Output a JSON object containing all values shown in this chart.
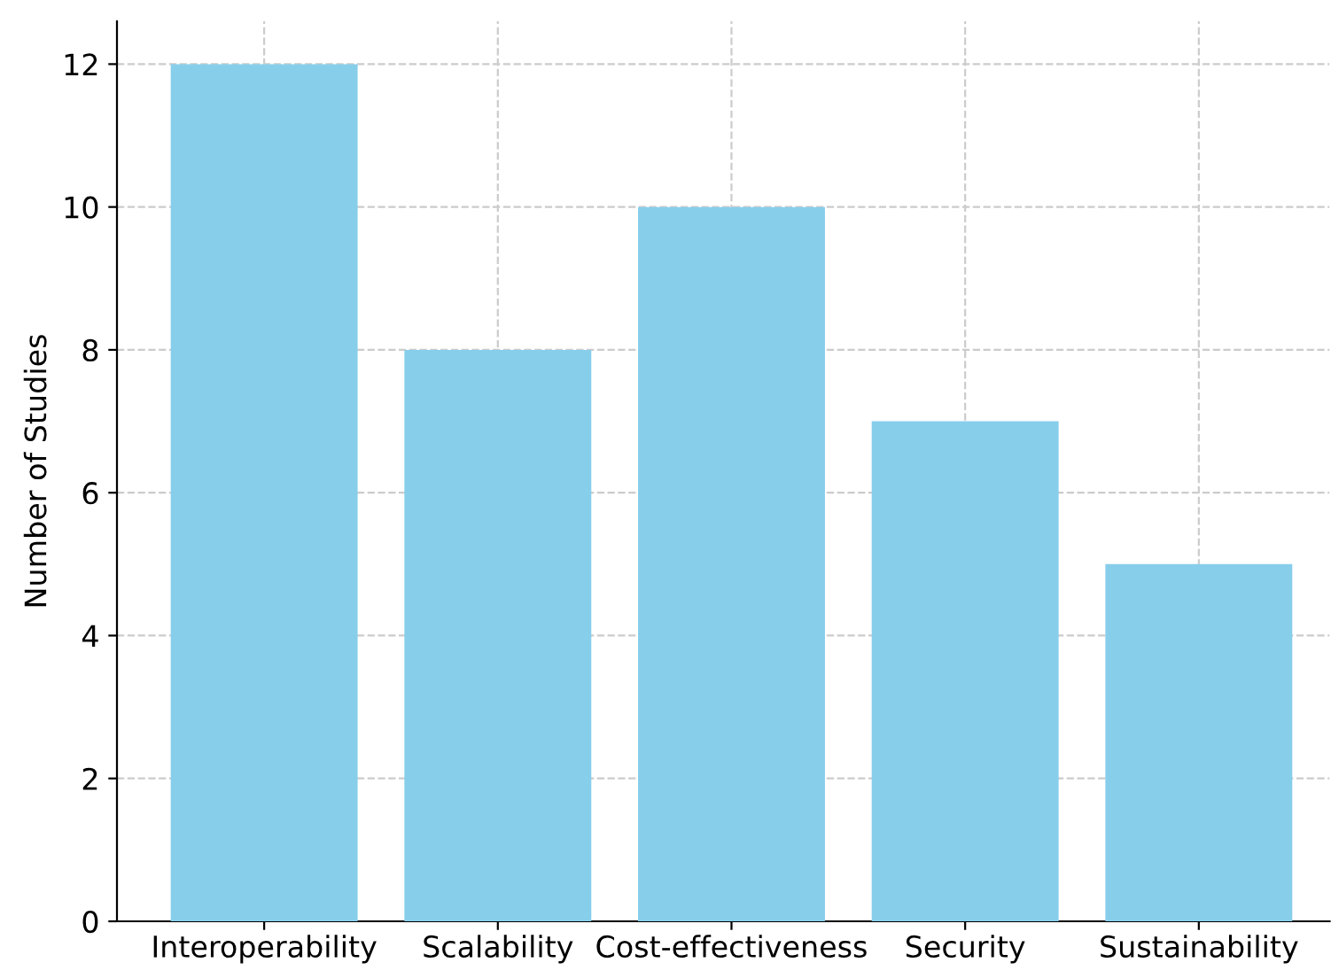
{
  "chart_data": {
    "type": "bar",
    "ylabel": "Number of Studies",
    "categories": [
      "Interoperability",
      "Scalability",
      "Cost-effectiveness",
      "Security",
      "Sustainability"
    ],
    "values": [
      12,
      8,
      10,
      7,
      5
    ],
    "color": "#87ceeb",
    "ylim": [
      0,
      12.6
    ],
    "yticks": [
      0,
      2,
      4,
      6,
      8,
      10,
      12
    ],
    "grid": true
  }
}
